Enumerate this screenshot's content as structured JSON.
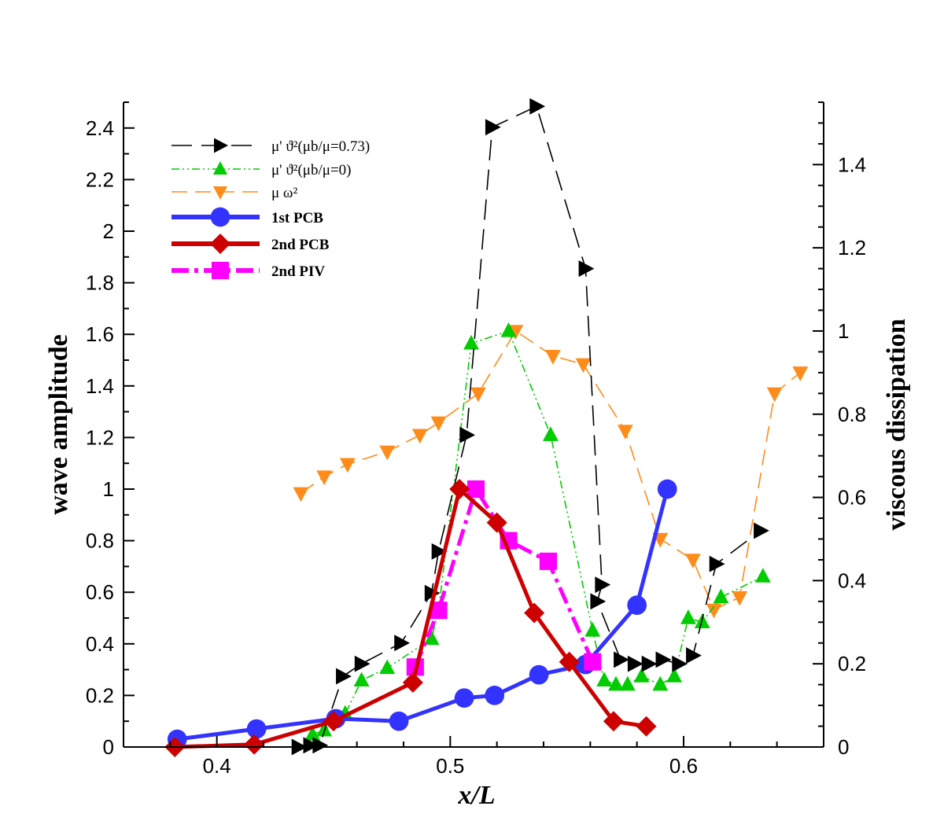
{
  "chart_data": {
    "type": "line",
    "xlabel": "x/L",
    "ylabel_left": "wave amplitude",
    "ylabel_right": "viscous dissipation",
    "xlim": [
      0.36,
      0.66
    ],
    "ylim_left": [
      0,
      2.5
    ],
    "ylim_right": [
      0,
      1.55
    ],
    "x_ticks": [
      "0.4",
      "0.5",
      "0.6"
    ],
    "x_tick_values": [
      0.4,
      0.5,
      0.6
    ],
    "y_left_ticks": [
      "0",
      "0.2",
      "0.4",
      "0.6",
      "0.8",
      "1",
      "1.2",
      "1.4",
      "1.6",
      "1.8",
      "2",
      "2.2",
      "2.4"
    ],
    "y_left_tick_values": [
      0,
      0.2,
      0.4,
      0.6,
      0.8,
      1.0,
      1.2,
      1.4,
      1.6,
      1.8,
      2.0,
      2.2,
      2.4
    ],
    "y_right_ticks": [
      "0",
      "0.2",
      "0.4",
      "0.6",
      "0.8",
      "1",
      "1.2",
      "1.4"
    ],
    "y_right_tick_values": [
      0,
      0.2,
      0.4,
      0.6,
      0.8,
      1.0,
      1.2,
      1.4
    ],
    "legend_position": "top-left",
    "series": [
      {
        "name": "μ' ϑ²(μb/μ=0.73)",
        "legend_label": "μ' ϑ²(μb/μ=0.73)",
        "axis": "right",
        "color": "#000000",
        "marker": "triangle-right",
        "line": "long-dash",
        "x": [
          0.435,
          0.44,
          0.444,
          0.454,
          0.462,
          0.479,
          0.492,
          0.495,
          0.507,
          0.518,
          0.537,
          0.558,
          0.565,
          0.563,
          0.573,
          0.579,
          0.585,
          0.591,
          0.598,
          0.604,
          0.614,
          0.633
        ],
        "y": [
          0.0,
          0.004,
          0.004,
          0.17,
          0.2,
          0.25,
          0.37,
          0.47,
          0.75,
          1.49,
          1.54,
          1.15,
          0.39,
          0.35,
          0.21,
          0.2,
          0.2,
          0.21,
          0.2,
          0.22,
          0.44,
          0.52
        ],
        "y_note": "read against right axis; sequence ordered along plotted path"
      },
      {
        "name": "μ' ϑ²(μb/μ=0)",
        "legend_label": "μ' ϑ²(μb/μ=0)",
        "axis": "right",
        "color": "#00cc00",
        "marker": "triangle-up",
        "line": "dash-dot-dot",
        "x": [
          0.441,
          0.446,
          0.455,
          0.462,
          0.473,
          0.492,
          0.495,
          0.509,
          0.525,
          0.543,
          0.561,
          0.566,
          0.571,
          0.576,
          0.582,
          0.59,
          0.596,
          0.602,
          0.608,
          0.616,
          0.634
        ],
        "y": [
          0.03,
          0.04,
          0.08,
          0.16,
          0.19,
          0.26,
          0.33,
          0.97,
          1.0,
          0.75,
          0.28,
          0.16,
          0.15,
          0.15,
          0.17,
          0.15,
          0.17,
          0.31,
          0.3,
          0.36,
          0.41
        ]
      },
      {
        "name": "μ ω²",
        "legend_label": "μ ω²",
        "axis": "right",
        "color": "#ff8c1a",
        "marker": "triangle-down",
        "line": "dash",
        "x": [
          0.436,
          0.446,
          0.456,
          0.473,
          0.487,
          0.495,
          0.512,
          0.528,
          0.544,
          0.557,
          0.575,
          0.59,
          0.604,
          0.613,
          0.624,
          0.639,
          0.65
        ],
        "y": [
          0.61,
          0.65,
          0.68,
          0.71,
          0.75,
          0.78,
          0.85,
          1.0,
          0.94,
          0.92,
          0.76,
          0.5,
          0.45,
          0.33,
          0.36,
          0.85,
          0.9
        ]
      },
      {
        "name": "1st PCB",
        "legend_label": "1st  PCB",
        "axis": "left",
        "color": "#3333ff",
        "marker": "circle",
        "line": "solid",
        "x": [
          0.383,
          0.417,
          0.451,
          0.478,
          0.506,
          0.519,
          0.538,
          0.558,
          0.58,
          0.593
        ],
        "y": [
          0.03,
          0.07,
          0.11,
          0.1,
          0.19,
          0.2,
          0.28,
          0.32,
          0.55,
          1.0
        ]
      },
      {
        "name": "2nd PCB",
        "legend_label": "2nd PCB",
        "axis": "left",
        "color": "#cc0000",
        "marker": "diamond",
        "line": "solid",
        "x": [
          0.382,
          0.416,
          0.45,
          0.484,
          0.504,
          0.52,
          0.536,
          0.551,
          0.57,
          0.584
        ],
        "y": [
          0.0,
          0.01,
          0.1,
          0.25,
          1.0,
          0.87,
          0.52,
          0.33,
          0.1,
          0.08
        ]
      },
      {
        "name": "2nd PIV",
        "legend_label": "2nd PIV",
        "axis": "left",
        "color": "#ff00ff",
        "marker": "square",
        "line": "dash-dot",
        "x": [
          0.485,
          0.495,
          0.511,
          0.525,
          0.542,
          0.561
        ],
        "y": [
          0.31,
          0.53,
          1.0,
          0.8,
          0.72,
          0.33
        ]
      }
    ]
  }
}
